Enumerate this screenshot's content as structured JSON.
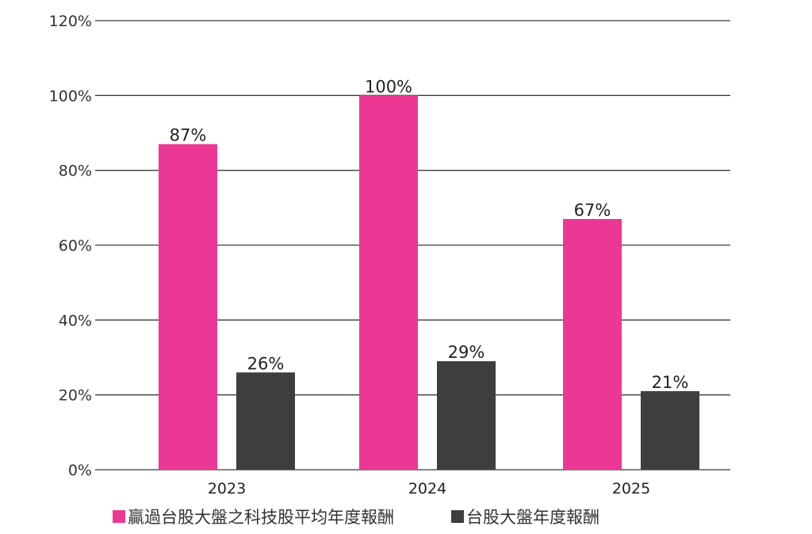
{
  "chart_data": {
    "type": "bar",
    "categories": [
      "2023",
      "2024",
      "2025"
    ],
    "series": [
      {
        "name": "贏過台股大盤之科技股平均年度報酬",
        "values": [
          87,
          100,
          67
        ],
        "labels": [
          "87%",
          "100%",
          "67%"
        ],
        "color": "#EC3895"
      },
      {
        "name": "台股大盤年度報酬",
        "values": [
          26,
          29,
          21
        ],
        "labels": [
          "26%",
          "29%",
          "21%"
        ],
        "color": "#3E3E3E"
      }
    ],
    "ylim": [
      0,
      120
    ],
    "yticks": [
      0,
      20,
      40,
      60,
      80,
      100,
      120
    ],
    "ytick_labels": [
      "0%",
      "20%",
      "40%",
      "60%",
      "80%",
      "100%",
      "120%"
    ],
    "grid": true,
    "legend_position": "bottom"
  }
}
